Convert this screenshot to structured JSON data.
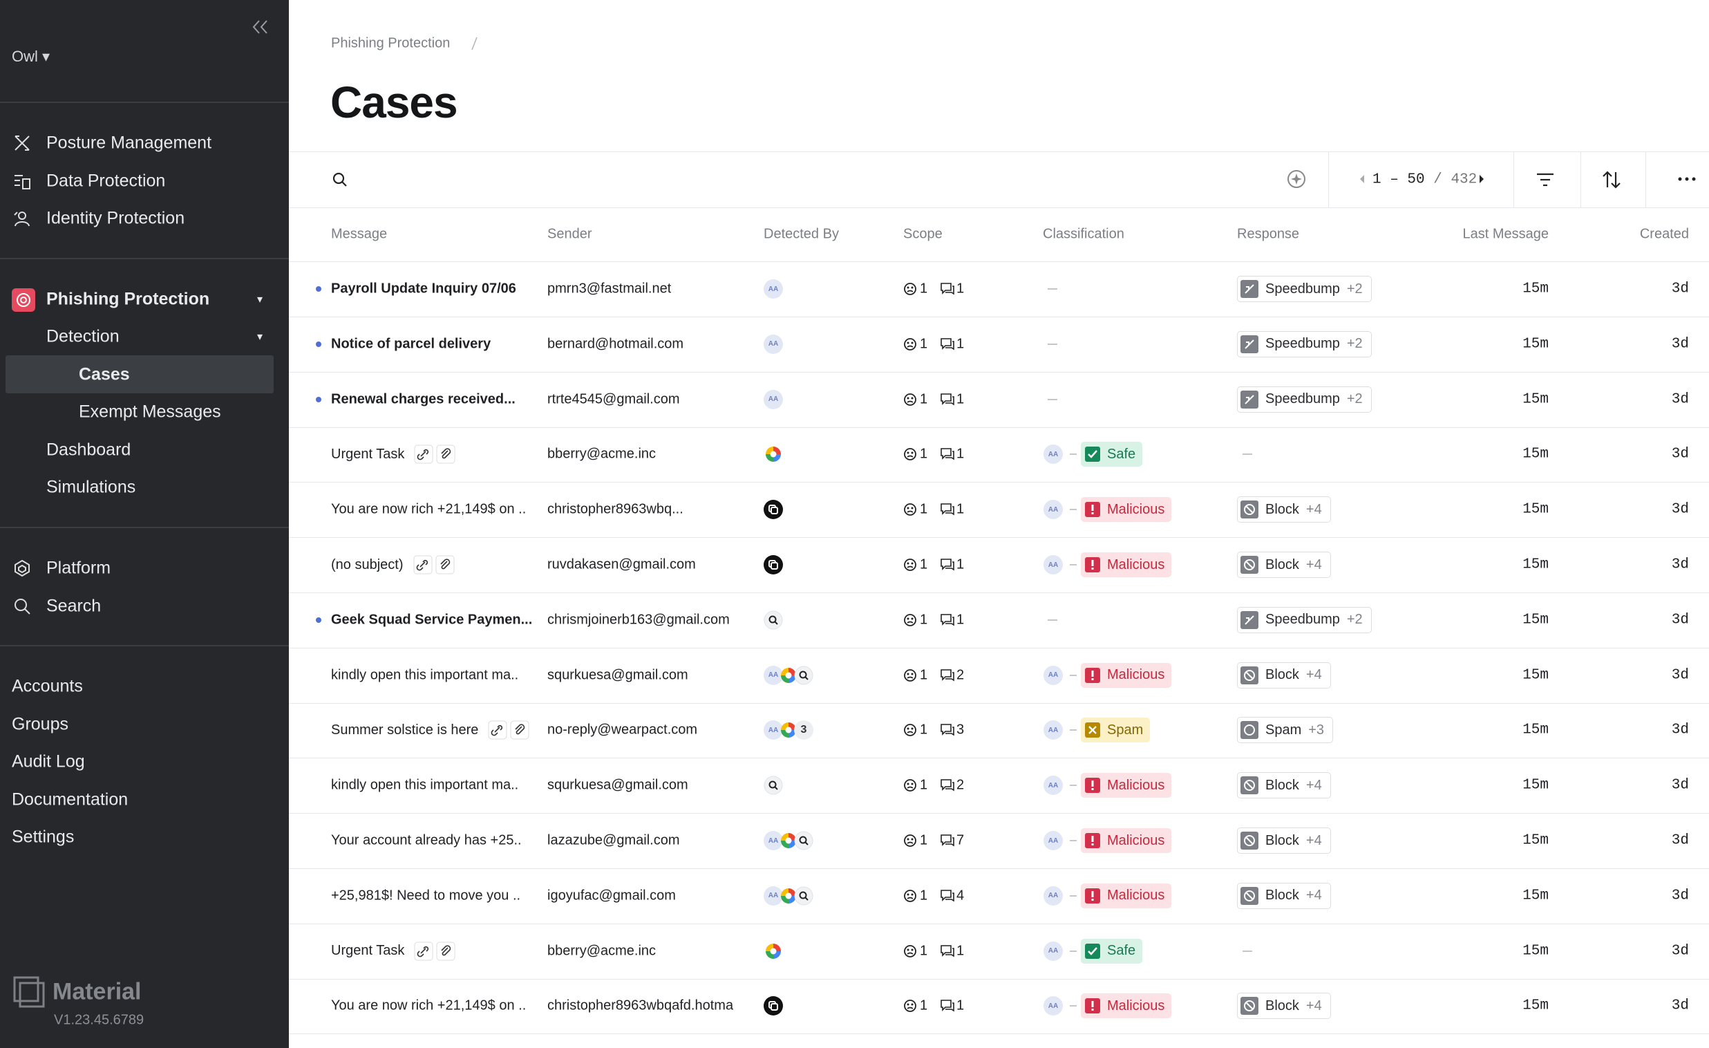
{
  "sidebar": {
    "workspace": "Owl",
    "security": [
      "Posture Management",
      "Data Protection",
      "Identity Protection"
    ],
    "phishing": {
      "title": "Phishing Protection",
      "detection": "Detection",
      "detection_items": [
        "Cases",
        "Exempt Messages"
      ],
      "items": [
        "Dashboard",
        "Simulations"
      ]
    },
    "platform": [
      "Platform",
      "Search"
    ],
    "admin": [
      "Accounts",
      "Groups",
      "Audit Log",
      "Documentation",
      "Settings"
    ],
    "brand": "Material",
    "version": "V1.23.45.6789"
  },
  "header": {
    "breadcrumb": "Phishing Protection",
    "title": "Cases"
  },
  "toolbar": {
    "range": "1 – 50",
    "total": "/ 432"
  },
  "reviewer_initials": "AA",
  "table": {
    "columns": [
      "Message",
      "Sender",
      "Detected By",
      "Scope",
      "Classification",
      "Response",
      "Last Message",
      "Created"
    ],
    "rows": [
      {
        "message": "Payroll Update Inquiry 07/06",
        "sender": "pmrn3@fastmail.net",
        "users": 1,
        "messages": 1,
        "classification": null,
        "response": "Speedbump",
        "response_more": "+2",
        "last": "15m",
        "created": "3d"
      },
      {
        "message": "Notice of parcel delivery",
        "sender": "bernard@hotmail.com",
        "users": 1,
        "messages": 1,
        "classification": null,
        "response": "Speedbump",
        "response_more": "+2",
        "last": "15m",
        "created": "3d"
      },
      {
        "message": "Renewal charges received...",
        "sender": "rtrte4545@gmail.com",
        "users": 1,
        "messages": 1,
        "classification": null,
        "response": "Speedbump",
        "response_more": "+2",
        "last": "15m",
        "created": "3d"
      },
      {
        "message": "Urgent Task",
        "sender": "bberry@acme.inc",
        "users": 1,
        "messages": 1,
        "classification": "Safe",
        "response": null,
        "response_more": null,
        "last": "15m",
        "created": "3d"
      },
      {
        "message": "You are now rich +21,149$ on ..",
        "sender": "christopher8963wbq...",
        "users": 1,
        "messages": 1,
        "classification": "Malicious",
        "response": "Block",
        "response_more": "+4",
        "last": "15m",
        "created": "3d"
      },
      {
        "message": "(no subject)",
        "sender": "ruvdakasen@gmail.com",
        "users": 1,
        "messages": 1,
        "classification": "Malicious",
        "response": "Block",
        "response_more": "+4",
        "last": "15m",
        "created": "3d"
      },
      {
        "message": "Geek Squad Service Paymen...",
        "sender": "chrismjoinerb163@gmail.com",
        "users": 1,
        "messages": 1,
        "classification": null,
        "response": "Speedbump",
        "response_more": "+2",
        "last": "15m",
        "created": "3d"
      },
      {
        "message": "kindly open this important ma..",
        "sender": "squrkuesa@gmail.com",
        "users": 1,
        "messages": 2,
        "classification": "Malicious",
        "response": "Block",
        "response_more": "+4",
        "last": "15m",
        "created": "3d"
      },
      {
        "message": "Summer solstice is here",
        "sender": "no-reply@wearpact.com",
        "more_detectors": 3,
        "users": 1,
        "messages": 3,
        "classification": "Spam",
        "response": "Spam",
        "response_more": "+3",
        "last": "15m",
        "created": "3d"
      },
      {
        "message": "kindly open this important ma..",
        "sender": "squrkuesa@gmail.com",
        "users": 1,
        "messages": 2,
        "classification": "Malicious",
        "response": "Block",
        "response_more": "+4",
        "last": "15m",
        "created": "3d"
      },
      {
        "message": "Your account already has +25..",
        "sender": "lazazube@gmail.com",
        "users": 1,
        "messages": 7,
        "classification": "Malicious",
        "response": "Block",
        "response_more": "+4",
        "last": "15m",
        "created": "3d"
      },
      {
        "message": "+25,981$! Need to move you ..",
        "sender": "igoyufac@gmail.com",
        "users": 1,
        "messages": 4,
        "classification": "Malicious",
        "response": "Block",
        "response_more": "+4",
        "last": "15m",
        "created": "3d"
      },
      {
        "message": "Urgent Task",
        "sender": "bberry@acme.inc",
        "users": 1,
        "messages": 1,
        "classification": "Safe",
        "response": null,
        "response_more": null,
        "last": "15m",
        "created": "3d"
      },
      {
        "message": "You are now rich +21,149$ on ..",
        "sender": "christopher8963wbqafd.hotma",
        "users": 1,
        "messages": 1,
        "classification": "Malicious",
        "response": "Block",
        "response_more": "+4",
        "last": "15m",
        "created": "3d"
      }
    ]
  }
}
